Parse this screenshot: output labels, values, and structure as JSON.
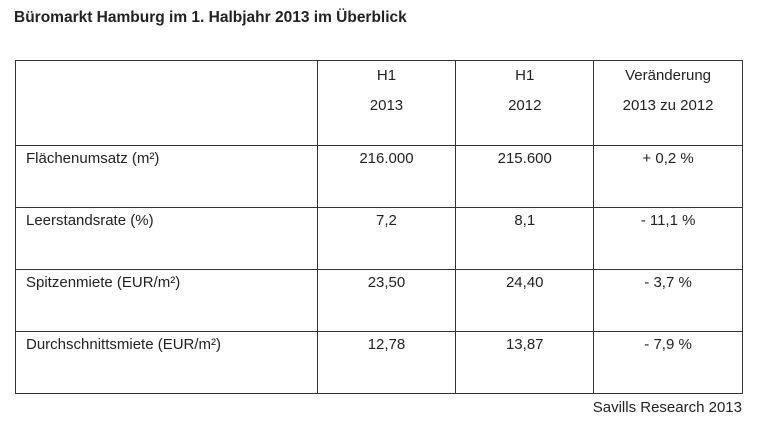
{
  "title": "Büromarkt Hamburg im 1. Halbjahr 2013 im Überblick",
  "header": {
    "col1": [
      "H1",
      "2013"
    ],
    "col2": [
      "H1",
      "2012"
    ],
    "col3": [
      "Veränderung",
      "2013 zu 2012"
    ]
  },
  "rows": [
    {
      "label": "Flächenumsatz (m²)",
      "h1_2013": "216.000",
      "h1_2012": "215.600",
      "change": "+ 0,2 %"
    },
    {
      "label": "Leerstandsrate (%)",
      "h1_2013": "7,2",
      "h1_2012": "8,1",
      "change": "- 11,1 %"
    },
    {
      "label": "Spitzenmiete (EUR/m²)",
      "h1_2013": "23,50",
      "h1_2012": "24,40",
      "change": "- 3,7 %"
    },
    {
      "label": "Durchschnittsmiete (EUR/m²)",
      "h1_2013": "12,78",
      "h1_2012": "13,87",
      "change": "- 7,9 %"
    }
  ],
  "source": "Savills Research 2013"
}
